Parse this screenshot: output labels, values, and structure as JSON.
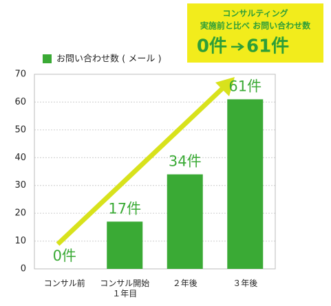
{
  "chart_data": {
    "type": "bar",
    "categories": [
      "コンサル前",
      "コンサル開始\n１年目",
      "２年後",
      "３年後"
    ],
    "series": [
      {
        "name": "お問い合わせ数 ( メール )",
        "color": "#3aaa35",
        "values": [
          0,
          17,
          34,
          61
        ],
        "value_labels": [
          "0件",
          "17件",
          "34件",
          "61件"
        ]
      }
    ],
    "ylim": [
      0,
      70
    ],
    "yticks": [
      0,
      10,
      20,
      30,
      40,
      50,
      60,
      70
    ],
    "grid": true,
    "annotations": [
      "コンサルティング",
      "実施前と比べ お問い合わせ数",
      "0件",
      "61件"
    ]
  }
}
